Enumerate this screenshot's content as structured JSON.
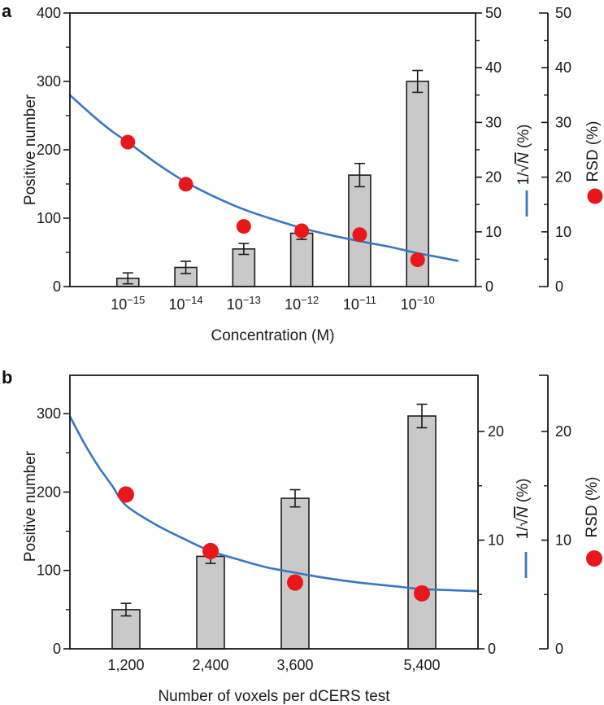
{
  "colors": {
    "background": "#ffffff",
    "bar_fill": "#c9c9c9",
    "bar_stroke": "#1f1f1f",
    "line_blue": "#3a76c4",
    "dot_red": "#e81719",
    "axis": "#1a1a1a",
    "text": "#1a1a1a"
  },
  "chart_data": [
    {
      "type": "bar",
      "panel_label": "a",
      "x_axis": {
        "title": "Concentration (M)",
        "scale": "log-categorical",
        "categories": [
          {
            "base": "10",
            "exp": "−15"
          },
          {
            "base": "10",
            "exp": "−14"
          },
          {
            "base": "10",
            "exp": "−13"
          },
          {
            "base": "10",
            "exp": "−12"
          },
          {
            "base": "10",
            "exp": "−11"
          },
          {
            "base": "10",
            "exp": "−10"
          }
        ]
      },
      "left_axis": {
        "title": "Positive number",
        "min": 0,
        "max": 400,
        "major_ticks": [
          0,
          100,
          200,
          300,
          400
        ],
        "minor_ticks": [
          50,
          150,
          250,
          350
        ]
      },
      "right_axis_line": {
        "title_plain": "1/√N (%)",
        "title_parts": [
          {
            "t": "1/√"
          },
          {
            "t": "N",
            "italic": true,
            "overline": true
          },
          {
            "t": " (%)"
          }
        ],
        "min": 0,
        "max": 50,
        "major_ticks": [
          0,
          10,
          20,
          30,
          40,
          50
        ],
        "minor_ticks": [
          5,
          15,
          25,
          35,
          45
        ]
      },
      "right_axis_scatter": {
        "title": "RSD (%)",
        "min": 0,
        "max": 50,
        "major_ticks": [
          0,
          10,
          20,
          30,
          40,
          50
        ],
        "minor_ticks": [
          5,
          15,
          25,
          35,
          45
        ]
      },
      "bars": {
        "name": "Positive number",
        "values": [
          12,
          28,
          55,
          78,
          163,
          300
        ],
        "errors": [
          8,
          9,
          8,
          9,
          17,
          16
        ]
      },
      "scatter": {
        "name": "RSD (%)",
        "values_percent": [
          26.4,
          18.7,
          11.0,
          10.2,
          9.5,
          4.9
        ]
      },
      "line": {
        "name": "1/√N (%)",
        "x_unit": "slot",
        "points": [
          [
            0,
            35.0
          ],
          [
            0.25,
            32.6
          ],
          [
            0.5,
            30.3
          ],
          [
            0.75,
            28.2
          ],
          [
            1,
            26.4
          ],
          [
            1.5,
            22.5
          ],
          [
            2,
            19.1
          ],
          [
            2.5,
            16.4
          ],
          [
            3,
            14.1
          ],
          [
            3.5,
            12.3
          ],
          [
            4,
            10.7
          ],
          [
            4.5,
            9.4
          ],
          [
            5,
            8.3
          ],
          [
            5.5,
            7.3
          ],
          [
            6,
            6.1
          ],
          [
            6.35,
            5.4
          ],
          [
            6.69,
            4.7
          ]
        ]
      }
    },
    {
      "type": "bar",
      "panel_label": "b",
      "x_axis": {
        "title": "Number of voxels per dCERS test",
        "scale": "linear",
        "categories": [
          "1,200",
          "2,400",
          "3,600",
          "5,400"
        ],
        "values": [
          1200,
          2400,
          3600,
          5400
        ],
        "range": [
          404,
          6196
        ]
      },
      "left_axis": {
        "title": "Positive number",
        "min": 0,
        "max": 348,
        "major_ticks": [
          0,
          100,
          200,
          300
        ],
        "minor_ticks": [
          50,
          150,
          250
        ]
      },
      "right_axis_line": {
        "title_plain": "1/√N (%)",
        "title_parts": [
          {
            "t": "1/√"
          },
          {
            "t": "N",
            "italic": true,
            "overline": true
          },
          {
            "t": " (%)"
          }
        ],
        "min": 0,
        "max": 25.2,
        "major_ticks": [
          0,
          10,
          20
        ],
        "minor_ticks": [
          5,
          15
        ]
      },
      "right_axis_scatter": {
        "title": "RSD (%)",
        "min": 0,
        "max": 25.2,
        "major_ticks": [
          0,
          10,
          20
        ],
        "minor_ticks": [
          5,
          15
        ]
      },
      "bars": {
        "name": "Positive number",
        "values": [
          50,
          118,
          192,
          297
        ],
        "errors": [
          8,
          9,
          11,
          15
        ]
      },
      "scatter": {
        "name": "RSD (%)",
        "values_percent": [
          14.2,
          9.0,
          6.1,
          5.1
        ]
      },
      "line": {
        "name": "1/√N (%)",
        "x_unit": "voxels",
        "points": [
          [
            404,
            21.4
          ],
          [
            600,
            19.0
          ],
          [
            796,
            16.9
          ],
          [
            1004,
            15.0
          ],
          [
            1200,
            13.2
          ],
          [
            1604,
            11.5
          ],
          [
            1996,
            10.2
          ],
          [
            2400,
            9.0
          ],
          [
            2804,
            8.2
          ],
          [
            3196,
            7.5
          ],
          [
            3600,
            7.0
          ],
          [
            4050,
            6.5
          ],
          [
            4500,
            6.1
          ],
          [
            4950,
            5.8
          ],
          [
            5400,
            5.5
          ],
          [
            5804,
            5.4
          ],
          [
            6196,
            5.3
          ]
        ]
      }
    }
  ]
}
